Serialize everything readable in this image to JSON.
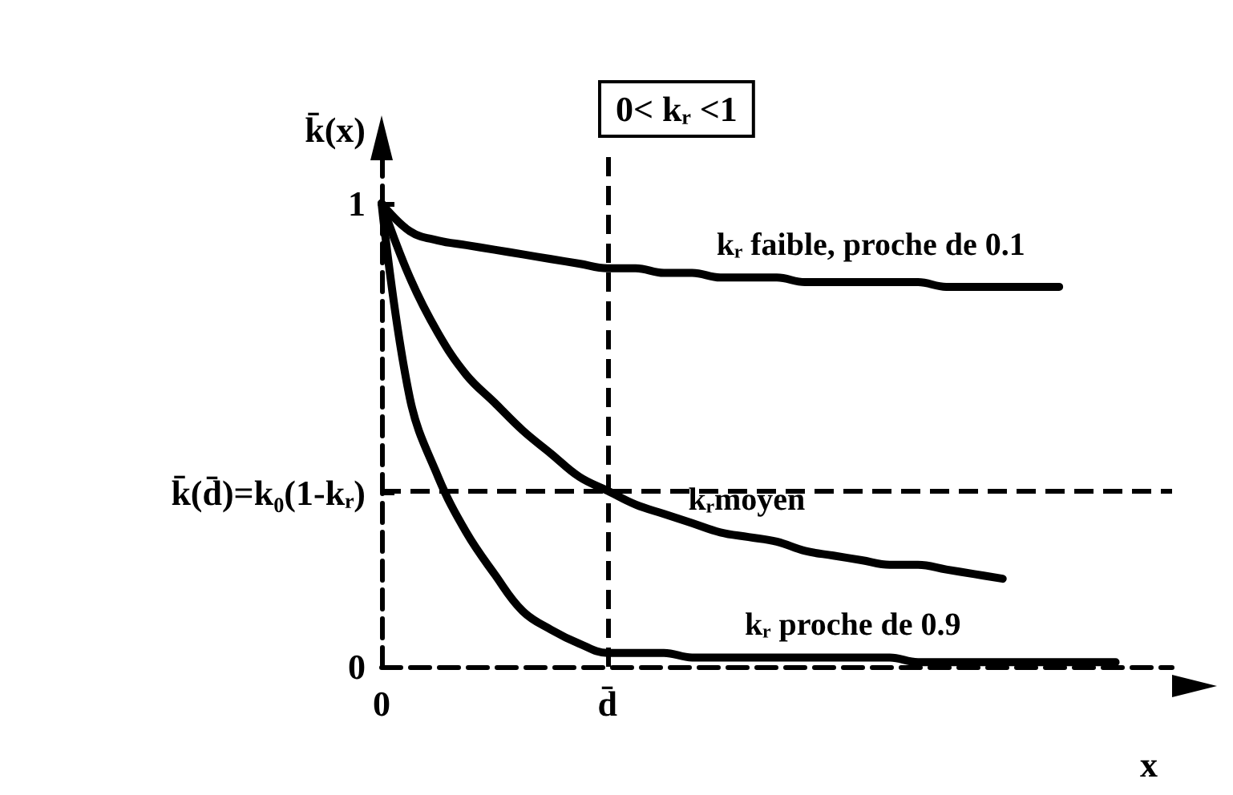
{
  "chart_data": {
    "type": "line",
    "xlabel": "x",
    "ylabel": "k̄(x)",
    "annotations": [
      "0< kᵣ <1"
    ],
    "categories": [
      "0",
      null,
      null,
      null,
      null,
      null,
      null,
      null,
      "d̄",
      null,
      null,
      null,
      null,
      null,
      null,
      null,
      null,
      null,
      null,
      null,
      null,
      null,
      null,
      null,
      null,
      null,
      null,
      null,
      null
    ],
    "ylim": [
      0,
      1.1
    ],
    "yticks": [
      0,
      {
        "value": 0.375,
        "label": "k̄(d̄)=k₀(1-kᵣ)"
      },
      1
    ],
    "series": [
      {
        "name": "kᵣ faible, proche de 0.1",
        "color": "#000000",
        "values": [
          1,
          0.94,
          0.92,
          0.91,
          0.9,
          0.89,
          0.88,
          0.87,
          0.86,
          0.86,
          0.85,
          0.85,
          0.84,
          0.84,
          0.84,
          0.83,
          0.83,
          0.83,
          0.83,
          0.83,
          0.82,
          0.82,
          0.82,
          0.82,
          0.82,
          null,
          null,
          null,
          null
        ]
      },
      {
        "name": "kᵣmoyen",
        "color": "#000000",
        "values": [
          1,
          0.84,
          0.72,
          0.63,
          0.57,
          0.51,
          0.46,
          0.41,
          0.38,
          0.35,
          0.33,
          0.31,
          0.29,
          0.28,
          0.27,
          0.25,
          0.24,
          0.23,
          0.22,
          0.22,
          0.21,
          0.2,
          0.19,
          null,
          null,
          null,
          null,
          null,
          null
        ]
      },
      {
        "name": "kᵣ proche de 0.9",
        "color": "#000000",
        "values": [
          1,
          0.58,
          0.41,
          0.29,
          0.2,
          0.12,
          0.08,
          0.05,
          0.03,
          0.03,
          0.03,
          0.02,
          0.02,
          0.02,
          0.02,
          0.02,
          0.02,
          0.02,
          0.02,
          0.01,
          0.01,
          0.01,
          0.01,
          0.01,
          0.01,
          0.01,
          0.01,
          null,
          null
        ]
      }
    ],
    "ref_lines": [
      {
        "axis": "x",
        "value": "d̄",
        "line_style": "dashed"
      },
      {
        "axis": "y",
        "value": 0.375,
        "line_style": "dashed"
      }
    ],
    "legend": false,
    "marker": "none",
    "line_style": "solid"
  }
}
